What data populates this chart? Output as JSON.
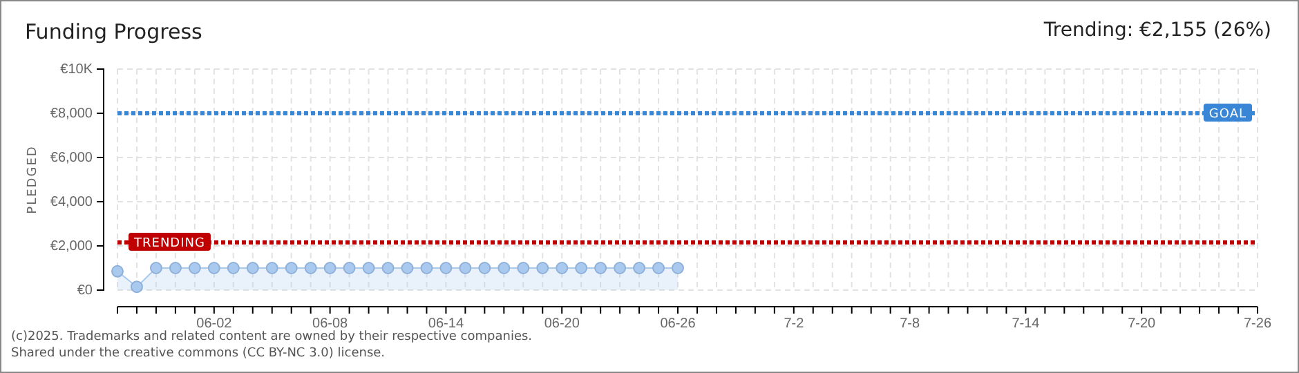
{
  "chart_data": {
    "type": "area",
    "title": "Funding Progress",
    "subtitle": "Trending: €2,155 (26%)",
    "ylabel": "PLEDGED",
    "x": [
      "2025-05-28",
      "2025-05-29",
      "2025-05-30",
      "2025-05-31",
      "2025-06-01",
      "2025-06-02",
      "2025-06-03",
      "2025-06-04",
      "2025-06-05",
      "2025-06-06",
      "2025-06-07",
      "2025-06-08",
      "2025-06-09",
      "2025-06-10",
      "2025-06-11",
      "2025-06-12",
      "2025-06-13",
      "2025-06-14",
      "2025-06-15",
      "2025-06-16",
      "2025-06-17",
      "2025-06-18",
      "2025-06-19",
      "2025-06-20",
      "2025-06-21",
      "2025-06-22",
      "2025-06-23",
      "2025-06-24",
      "2025-06-25",
      "2025-06-26"
    ],
    "values": [
      850,
      150,
      1000,
      1000,
      1000,
      1000,
      1000,
      1000,
      1000,
      1000,
      1000,
      1000,
      1000,
      1000,
      1000,
      1000,
      1000,
      1000,
      1000,
      1000,
      1000,
      1000,
      1000,
      1000,
      1000,
      1000,
      1000,
      1000,
      1000,
      1000
    ],
    "color": "#a9c9ef",
    "marker": "circle",
    "grid": true,
    "xlim": [
      "2025-05-28",
      "2025-07-26"
    ],
    "xticks": [
      {
        "value": "2025-05-28",
        "label": null
      },
      {
        "value": "2025-05-29",
        "label": null
      },
      {
        "value": "2025-05-30",
        "label": null
      },
      {
        "value": "2025-05-31",
        "label": null
      },
      {
        "value": "2025-06-01",
        "label": null
      },
      {
        "value": "2025-06-02",
        "label": "06-02"
      },
      {
        "value": "2025-06-03",
        "label": null
      },
      {
        "value": "2025-06-04",
        "label": null
      },
      {
        "value": "2025-06-05",
        "label": null
      },
      {
        "value": "2025-06-06",
        "label": null
      },
      {
        "value": "2025-06-07",
        "label": null
      },
      {
        "value": "2025-06-08",
        "label": "06-08"
      },
      {
        "value": "2025-06-09",
        "label": null
      },
      {
        "value": "2025-06-10",
        "label": null
      },
      {
        "value": "2025-06-11",
        "label": null
      },
      {
        "value": "2025-06-12",
        "label": null
      },
      {
        "value": "2025-06-13",
        "label": null
      },
      {
        "value": "2025-06-14",
        "label": "06-14"
      },
      {
        "value": "2025-06-15",
        "label": null
      },
      {
        "value": "2025-06-16",
        "label": null
      },
      {
        "value": "2025-06-17",
        "label": null
      },
      {
        "value": "2025-06-18",
        "label": null
      },
      {
        "value": "2025-06-19",
        "label": null
      },
      {
        "value": "2025-06-20",
        "label": "06-20"
      },
      {
        "value": "2025-06-21",
        "label": null
      },
      {
        "value": "2025-06-22",
        "label": null
      },
      {
        "value": "2025-06-23",
        "label": null
      },
      {
        "value": "2025-06-24",
        "label": null
      },
      {
        "value": "2025-06-25",
        "label": null
      },
      {
        "value": "2025-06-26",
        "label": "06-26"
      },
      {
        "value": "2025-06-27",
        "label": null
      },
      {
        "value": "2025-06-28",
        "label": null
      },
      {
        "value": "2025-06-29",
        "label": null
      },
      {
        "value": "2025-06-30",
        "label": null
      },
      {
        "value": "2025-07-01",
        "label": null
      },
      {
        "value": "2025-07-02",
        "label": "7-2"
      },
      {
        "value": "2025-07-03",
        "label": null
      },
      {
        "value": "2025-07-04",
        "label": null
      },
      {
        "value": "2025-07-05",
        "label": null
      },
      {
        "value": "2025-07-06",
        "label": null
      },
      {
        "value": "2025-07-07",
        "label": null
      },
      {
        "value": "2025-07-08",
        "label": "7-8"
      },
      {
        "value": "2025-07-09",
        "label": null
      },
      {
        "value": "2025-07-10",
        "label": null
      },
      {
        "value": "2025-07-11",
        "label": null
      },
      {
        "value": "2025-07-12",
        "label": null
      },
      {
        "value": "2025-07-13",
        "label": null
      },
      {
        "value": "2025-07-14",
        "label": "7-14"
      },
      {
        "value": "2025-07-15",
        "label": null
      },
      {
        "value": "2025-07-16",
        "label": null
      },
      {
        "value": "2025-07-17",
        "label": null
      },
      {
        "value": "2025-07-18",
        "label": null
      },
      {
        "value": "2025-07-19",
        "label": null
      },
      {
        "value": "2025-07-20",
        "label": "7-20"
      },
      {
        "value": "2025-07-21",
        "label": null
      },
      {
        "value": "2025-07-22",
        "label": null
      },
      {
        "value": "2025-07-23",
        "label": null
      },
      {
        "value": "2025-07-24",
        "label": null
      },
      {
        "value": "2025-07-25",
        "label": null
      },
      {
        "value": "2025-07-26",
        "label": "7-26"
      }
    ],
    "ylim": [
      0,
      10000
    ],
    "yticks": [
      {
        "value": 0,
        "label": "€0"
      },
      {
        "value": 2000,
        "label": "€2,000"
      },
      {
        "value": 4000,
        "label": "€4,000"
      },
      {
        "value": 6000,
        "label": "€6,000"
      },
      {
        "value": 8000,
        "label": "€8,000"
      },
      {
        "value": 10000,
        "label": "€10K"
      }
    ],
    "ref_lines": [
      {
        "axis": "y",
        "value": 8000,
        "label": "GOAL",
        "color": "#3a86d6",
        "line_style": "dotted"
      },
      {
        "axis": "y",
        "value": 2155,
        "label": "TRENDING",
        "color": "#c00000",
        "line_style": "dotted"
      }
    ],
    "annotations": [
      "(c)2025. Trademarks and related content are owned by their respective companies.",
      "Shared under the creative commons (CC BY-NC 3.0) license."
    ]
  }
}
